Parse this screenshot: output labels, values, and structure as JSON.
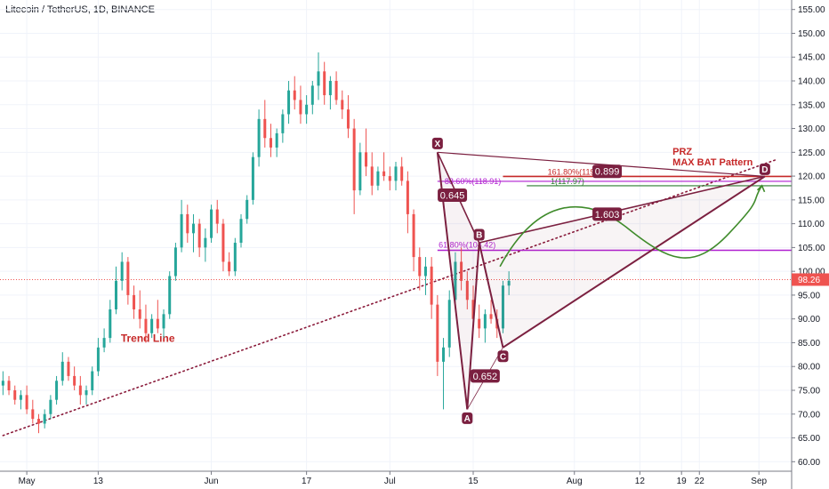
{
  "header": {
    "title": "Litecoin / TetherUS, 1D, BINANCE"
  },
  "price_tag": "98.26",
  "colors": {
    "up": "#26a69a",
    "down": "#ef5350",
    "pattern": "#7b2040",
    "fib_purple": "#b01fd0",
    "fib_red": "#c62828",
    "fib_green": "#2e7d32",
    "price_line": "#ef5350",
    "trend": "#8a1a3a"
  },
  "chart_data": {
    "type": "candlestick",
    "ylim": [
      58,
      157
    ],
    "y_ticks": [
      "155.00",
      "150.00",
      "145.00",
      "140.00",
      "135.00",
      "130.00",
      "125.00",
      "120.00",
      "115.00",
      "110.00",
      "105.00",
      "100.00",
      "95.00",
      "90.00",
      "85.00",
      "80.00",
      "75.00",
      "70.00",
      "65.00",
      "60.00"
    ],
    "x_ticks": [
      {
        "label": "May",
        "day": 0
      },
      {
        "label": "13",
        "day": 12
      },
      {
        "label": "Jun",
        "day": 31
      },
      {
        "label": "17",
        "day": 47
      },
      {
        "label": "Jul",
        "day": 61
      },
      {
        "label": "15",
        "day": 75
      },
      {
        "label": "Aug",
        "day": 92
      },
      {
        "label": "12",
        "day": 103
      },
      {
        "label": "19",
        "day": 110
      },
      {
        "label": "22",
        "day": 113
      },
      {
        "label": "Sep",
        "day": 123
      }
    ],
    "candles": [
      [
        -4,
        76,
        79,
        74,
        77
      ],
      [
        -3,
        77,
        78,
        74,
        75
      ],
      [
        -2,
        75,
        76,
        72,
        73
      ],
      [
        -1,
        73,
        75,
        71,
        74
      ],
      [
        0,
        74,
        76,
        70,
        71
      ],
      [
        1,
        71,
        73,
        68,
        69
      ],
      [
        2,
        69,
        70,
        66,
        68
      ],
      [
        3,
        68,
        71,
        67,
        70
      ],
      [
        4,
        70,
        74,
        69,
        73
      ],
      [
        5,
        73,
        78,
        72,
        77
      ],
      [
        6,
        77,
        83,
        76,
        81
      ],
      [
        7,
        81,
        82,
        77,
        78
      ],
      [
        8,
        78,
        80,
        75,
        76
      ],
      [
        9,
        76,
        78,
        72,
        74
      ],
      [
        10,
        74,
        76,
        72,
        75
      ],
      [
        11,
        75,
        80,
        74,
        79
      ],
      [
        12,
        79,
        86,
        78,
        84
      ],
      [
        13,
        84,
        88,
        83,
        86
      ],
      [
        14,
        86,
        94,
        85,
        92
      ],
      [
        15,
        92,
        101,
        91,
        98
      ],
      [
        16,
        98,
        104,
        96,
        102
      ],
      [
        17,
        102,
        103,
        93,
        95
      ],
      [
        18,
        95,
        97,
        90,
        92
      ],
      [
        19,
        92,
        96,
        88,
        90
      ],
      [
        20,
        90,
        93,
        85,
        87
      ],
      [
        21,
        87,
        91,
        86,
        90
      ],
      [
        22,
        90,
        94,
        87,
        88
      ],
      [
        23,
        88,
        92,
        86,
        91
      ],
      [
        24,
        91,
        100,
        90,
        99
      ],
      [
        25,
        99,
        106,
        98,
        105
      ],
      [
        26,
        105,
        115,
        104,
        112
      ],
      [
        27,
        112,
        114,
        106,
        108
      ],
      [
        28,
        108,
        112,
        104,
        110
      ],
      [
        29,
        110,
        111,
        103,
        105
      ],
      [
        30,
        105,
        109,
        102,
        107
      ],
      [
        31,
        107,
        114,
        106,
        113
      ],
      [
        32,
        113,
        115,
        108,
        110
      ],
      [
        33,
        110,
        111,
        100,
        102
      ],
      [
        34,
        102,
        104,
        99,
        100
      ],
      [
        35,
        100,
        107,
        99,
        106
      ],
      [
        36,
        106,
        112,
        105,
        111
      ],
      [
        37,
        111,
        116,
        110,
        115
      ],
      [
        38,
        115,
        125,
        114,
        124
      ],
      [
        39,
        124,
        134,
        122,
        132
      ],
      [
        40,
        132,
        136,
        126,
        128
      ],
      [
        41,
        128,
        131,
        124,
        126
      ],
      [
        42,
        126,
        130,
        124,
        129
      ],
      [
        43,
        129,
        134,
        127,
        133
      ],
      [
        44,
        133,
        140,
        131,
        138
      ],
      [
        45,
        138,
        141,
        134,
        136
      ],
      [
        46,
        136,
        139,
        131,
        133
      ],
      [
        47,
        133,
        137,
        131,
        135
      ],
      [
        48,
        135,
        140,
        133,
        139
      ],
      [
        49,
        139,
        146,
        136,
        142
      ],
      [
        50,
        142,
        144,
        135,
        137
      ],
      [
        51,
        137,
        141,
        134,
        140
      ],
      [
        52,
        140,
        142,
        135,
        136
      ],
      [
        53,
        136,
        138,
        132,
        134
      ],
      [
        54,
        134,
        137,
        128,
        130
      ],
      [
        55,
        130,
        132,
        112,
        117
      ],
      [
        56,
        117,
        127,
        116,
        125
      ],
      [
        57,
        125,
        130,
        120,
        122
      ],
      [
        58,
        122,
        125,
        116,
        118
      ],
      [
        59,
        118,
        122,
        117,
        121
      ],
      [
        60,
        121,
        125,
        119,
        120
      ],
      [
        61,
        120,
        122,
        117,
        119
      ],
      [
        62,
        119,
        123,
        117,
        122
      ],
      [
        63,
        122,
        124,
        118,
        119
      ],
      [
        64,
        119,
        121,
        108,
        112
      ],
      [
        65,
        112,
        113,
        100,
        103
      ],
      [
        66,
        103,
        105,
        96,
        99
      ],
      [
        67,
        99,
        103,
        95,
        101
      ],
      [
        68,
        101,
        103,
        90,
        93
      ],
      [
        69,
        93,
        95,
        78,
        81
      ],
      [
        70,
        81,
        86,
        71,
        84
      ],
      [
        71,
        84,
        96,
        82,
        94
      ],
      [
        72,
        94,
        104,
        92,
        102
      ],
      [
        73,
        102,
        105,
        96,
        98
      ],
      [
        74,
        98,
        100,
        92,
        94
      ],
      [
        75,
        94,
        97,
        88,
        90
      ],
      [
        76,
        90,
        93,
        86,
        88
      ],
      [
        77,
        88,
        92,
        85,
        91
      ],
      [
        78,
        91,
        94,
        89,
        90
      ],
      [
        79,
        90,
        92,
        86,
        88
      ],
      [
        80,
        88,
        98,
        87,
        97
      ],
      [
        81,
        97,
        100,
        95,
        98
      ]
    ],
    "pattern_points": [
      {
        "label": "X",
        "day": 69,
        "price": 125
      },
      {
        "label": "A",
        "day": 74,
        "price": 71
      },
      {
        "label": "B",
        "day": 76,
        "price": 106
      },
      {
        "label": "C",
        "day": 80,
        "price": 84
      },
      {
        "label": "D",
        "day": 124,
        "price": 119.94
      }
    ],
    "ratios": [
      {
        "label": "0.645",
        "day": 71.5,
        "price": 116
      },
      {
        "label": "0.652",
        "day": 77,
        "price": 78
      },
      {
        "label": "1.603",
        "day": 97.5,
        "price": 112
      },
      {
        "label": "0.899",
        "day": 97.5,
        "price": 121
      }
    ],
    "fib_levels": [
      {
        "label": "61.80%(104.42)",
        "price": 104.42
      },
      {
        "label": "88.60%(118.91)",
        "price": 118.91
      },
      {
        "label": "161.80%(119.94)",
        "price": 119.94
      },
      {
        "label": "1(117.97)",
        "price": 117.97
      }
    ],
    "annotations": {
      "trend_line": "Trend Line",
      "prz": "PRZ",
      "pattern": "MAX BAT Pattern"
    },
    "current_price": 98.26,
    "trend_line": {
      "start_day": -4,
      "start_price": 65.5,
      "end_day": 126,
      "end_price": 123.5
    }
  }
}
